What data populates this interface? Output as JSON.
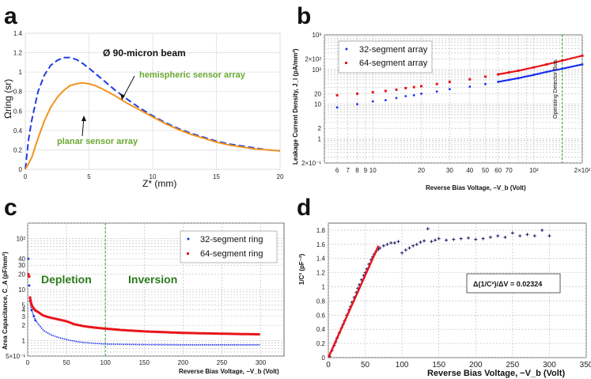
{
  "panels": {
    "a": "a",
    "b": "b",
    "c": "c",
    "d": "d"
  },
  "chart_data": [
    {
      "panel": "a",
      "type": "line",
      "title": "Ø 90-micron beam",
      "xlabel": "Z* (mm)",
      "ylabel": "Ωring (sr)",
      "xlim": [
        0,
        20
      ],
      "ylim": [
        0,
        1.4
      ],
      "xticks": [
        "0",
        "5",
        "10",
        "15",
        "20"
      ],
      "yticks": [
        "0",
        "0.2",
        "0.4",
        "0.6",
        "0.8",
        "1",
        "1.2",
        "1.4"
      ],
      "series": [
        {
          "name": "hemispheric sensor array",
          "color": "#1f3ee0",
          "style": "dashed",
          "x": [
            0,
            0.25,
            0.5,
            1,
            1.5,
            2,
            2.5,
            3,
            3.5,
            4,
            4.5,
            5,
            6,
            7,
            8,
            9,
            10,
            11,
            12,
            13,
            14,
            15,
            16,
            17,
            18,
            19,
            20
          ],
          "y": [
            0,
            0.3,
            0.5,
            0.8,
            0.97,
            1.07,
            1.12,
            1.15,
            1.15,
            1.13,
            1.09,
            1.04,
            0.93,
            0.82,
            0.72,
            0.63,
            0.55,
            0.48,
            0.42,
            0.37,
            0.33,
            0.29,
            0.26,
            0.24,
            0.22,
            0.2,
            0.19
          ]
        },
        {
          "name": "planar sensor array",
          "color": "#f29420",
          "style": "solid",
          "x": [
            0,
            0.5,
            1,
            1.5,
            2,
            2.5,
            3,
            3.5,
            4,
            4.5,
            5,
            5.5,
            6,
            7,
            8,
            9,
            10,
            11,
            12,
            13,
            14,
            15,
            16,
            17,
            18,
            19,
            20
          ],
          "y": [
            0,
            0.12,
            0.32,
            0.5,
            0.64,
            0.74,
            0.81,
            0.86,
            0.88,
            0.89,
            0.88,
            0.86,
            0.83,
            0.76,
            0.68,
            0.61,
            0.54,
            0.47,
            0.41,
            0.36,
            0.32,
            0.28,
            0.25,
            0.23,
            0.21,
            0.2,
            0.19
          ]
        }
      ],
      "annotations": [
        {
          "text": "hemispheric sensor array",
          "color": "#6aa832"
        },
        {
          "text": "planar sensor array",
          "color": "#6aa832"
        }
      ]
    },
    {
      "panel": "b",
      "type": "scatter",
      "xscale": "log",
      "yscale": "log",
      "xlabel": "Reverse Bias Voltage, −V_b (Volt)",
      "ylabel": "Leakage Current Density, J_l (pA/mm²)",
      "xlim": [
        5,
        200
      ],
      "ylim": [
        0.2,
        1000
      ],
      "xticks": [
        "6",
        "7",
        "8",
        "9",
        "10",
        "20",
        "30",
        "40",
        "50",
        "60",
        "70",
        "10²",
        "2×10²"
      ],
      "xtick_values": [
        6,
        7,
        8,
        9,
        10,
        20,
        30,
        40,
        50,
        60,
        70,
        100,
        200
      ],
      "yticks": [
        "2×10⁻¹",
        "1",
        "2",
        "10",
        "20",
        "10²",
        "2×10²",
        "10³"
      ],
      "ytick_values": [
        0.2,
        1,
        2,
        10,
        20,
        100,
        200,
        1000
      ],
      "vline": {
        "x": 150,
        "label": "Operating Detector Bias",
        "color": "#22aa22"
      },
      "series": [
        {
          "name": "32-segment array",
          "color": "#1a2ef0",
          "x": [
            6,
            8,
            10,
            12,
            14,
            16,
            18,
            20,
            25,
            30,
            40,
            50,
            60,
            70,
            80,
            100,
            120,
            150,
            200
          ],
          "y": [
            8,
            10,
            12,
            13,
            15,
            17,
            18,
            20,
            23,
            27,
            32,
            38,
            44,
            50,
            56,
            70,
            85,
            105,
            140
          ]
        },
        {
          "name": "64-segment array",
          "color": "#e8151b",
          "x": [
            6,
            8,
            10,
            12,
            14,
            16,
            18,
            20,
            25,
            30,
            40,
            50,
            60,
            70,
            80,
            100,
            120,
            150,
            200
          ],
          "y": [
            18,
            20,
            22,
            24,
            26,
            29,
            31,
            33,
            38,
            44,
            52,
            62,
            72,
            82,
            92,
            115,
            140,
            180,
            250
          ]
        }
      ]
    },
    {
      "panel": "c",
      "type": "scatter",
      "yscale": "log",
      "xlabel": "Reverse Bias Voltage, −V_b (Volt)",
      "ylabel": "Area Capacitance, C_A (pF/mm²)",
      "xlim": [
        0,
        330
      ],
      "ylim": [
        0.5,
        200
      ],
      "xticks": [
        "0",
        "50",
        "100",
        "150",
        "200",
        "250",
        "300"
      ],
      "yticks": [
        "5×10⁻¹",
        "1",
        "2",
        "3",
        "4",
        "5",
        "10",
        "20",
        "30",
        "40",
        "10²"
      ],
      "ytick_values": [
        0.5,
        1,
        2,
        3,
        4,
        5,
        10,
        20,
        30,
        40,
        100
      ],
      "vline": {
        "x": 100,
        "color": "#22aa22"
      },
      "region_labels": [
        {
          "text": "Depletion",
          "color": "#2a7a1a"
        },
        {
          "text": "Inversion",
          "color": "#2a7a1a"
        }
      ],
      "series": [
        {
          "name": "32-segment ring",
          "color": "#1a2ef0",
          "x": [
            1,
            2,
            3,
            5,
            8,
            10,
            15,
            20,
            30,
            40,
            50,
            60,
            70,
            80,
            90,
            100,
            120,
            150,
            200,
            250,
            300
          ],
          "y": [
            40,
            12,
            6,
            4,
            3,
            2.5,
            2,
            1.6,
            1.3,
            1.15,
            1.05,
            0.98,
            0.93,
            0.9,
            0.88,
            0.86,
            0.85,
            0.84,
            0.83,
            0.83,
            0.83
          ]
        },
        {
          "name": "64-segment ring",
          "color": "#e8151b",
          "x": [
            1,
            2,
            3,
            5,
            8,
            10,
            15,
            20,
            30,
            40,
            50,
            60,
            70,
            80,
            90,
            100,
            120,
            150,
            200,
            250,
            300
          ],
          "y": [
            20,
            18,
            7,
            5,
            4.2,
            3.9,
            3.5,
            3.1,
            2.8,
            2.6,
            2.4,
            2.1,
            1.95,
            1.85,
            1.78,
            1.72,
            1.62,
            1.52,
            1.42,
            1.37,
            1.33
          ]
        }
      ]
    },
    {
      "panel": "d",
      "type": "scatter",
      "xlabel": "Reverse Bias Voltage, −V_b (Volt)",
      "ylabel": "1/C² (pF⁻²)",
      "xlim": [
        0,
        350
      ],
      "ylim": [
        0,
        1.9
      ],
      "xticks": [
        "0",
        "50",
        "100",
        "150",
        "200",
        "250",
        "300",
        "350"
      ],
      "yticks": [
        "0",
        "0.2",
        "0.4",
        "0.6",
        "0.8",
        "1",
        "1.2",
        "1.4",
        "1.6",
        "1.8"
      ],
      "annotation": "Δ(1/C²)/ΔV = 0.02324",
      "fit_line": {
        "x": [
          0,
          68
        ],
        "y": [
          0,
          1.58
        ],
        "color": "#e8151b"
      },
      "series": [
        {
          "name": "data",
          "color": "#1a1a6a",
          "x": [
            2,
            5,
            8,
            10,
            12,
            15,
            18,
            20,
            22,
            25,
            28,
            30,
            32,
            35,
            38,
            40,
            42,
            45,
            48,
            50,
            52,
            55,
            58,
            60,
            62,
            65,
            68,
            70,
            75,
            80,
            85,
            90,
            95,
            100,
            105,
            110,
            115,
            120,
            125,
            130,
            135,
            140,
            145,
            150,
            160,
            170,
            180,
            190,
            200,
            210,
            220,
            230,
            240,
            250,
            260,
            270,
            280,
            290,
            300
          ],
          "y": [
            0.02,
            0.1,
            0.17,
            0.22,
            0.28,
            0.35,
            0.42,
            0.47,
            0.52,
            0.6,
            0.67,
            0.72,
            0.78,
            0.85,
            0.92,
            0.98,
            1.03,
            1.1,
            1.16,
            1.2,
            1.25,
            1.32,
            1.38,
            1.42,
            1.46,
            1.5,
            1.53,
            1.55,
            1.58,
            1.6,
            1.62,
            1.62,
            1.64,
            1.48,
            1.52,
            1.55,
            1.58,
            1.6,
            1.63,
            1.65,
            1.82,
            1.64,
            1.66,
            1.68,
            1.66,
            1.67,
            1.68,
            1.69,
            1.67,
            1.68,
            1.7,
            1.72,
            1.7,
            1.76,
            1.72,
            1.74,
            1.72,
            1.8,
            1.72
          ]
        }
      ]
    }
  ]
}
